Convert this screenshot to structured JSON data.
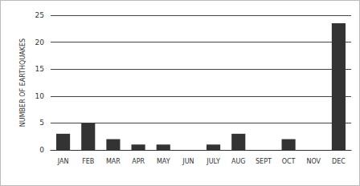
{
  "chart_data": {
    "type": "bar",
    "categories": [
      "JAN",
      "FEB",
      "MAR",
      "APR",
      "MAY",
      "JUN",
      "JULY",
      "AUG",
      "SEPT",
      "OCT",
      "NOV",
      "DEC"
    ],
    "values": [
      3,
      5,
      2,
      1,
      1,
      0,
      1,
      3,
      0,
      2,
      0,
      23.5
    ],
    "color": "#333333",
    "y_label": "NUMBER OF EARTHQUAKES",
    "ylim": [
      0,
      25
    ],
    "yticks": [
      0,
      5,
      10,
      15,
      20,
      25
    ],
    "grid": true
  }
}
